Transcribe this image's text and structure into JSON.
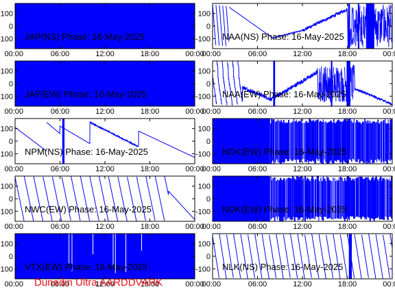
{
  "footer": "Dunedin Ultra AARDDVARK",
  "colors": {
    "trace": "#0000ff",
    "footer": "#e8101a",
    "frame": "#000000"
  },
  "chart_data": [
    {
      "type": "line",
      "title": "JAP(NS) Phase: 16-May-2025",
      "pattern": "solid",
      "xticks": [
        "00:00",
        "06:00",
        "12:00",
        "18:00",
        "00:00"
      ],
      "yticks": [
        100,
        0,
        -100
      ],
      "ylim": [
        -180,
        180
      ],
      "xlim": [
        0,
        24
      ]
    },
    {
      "type": "line",
      "title": "NAA(NS) Phase: 16-May-2025",
      "pattern": "naa_ns",
      "xticks": [
        "00:00",
        "06:00",
        "12:00",
        "18:00",
        "00:00"
      ],
      "yticks": [
        100,
        0,
        -100
      ],
      "ylim": [
        -180,
        180
      ],
      "xlim": [
        0,
        24
      ]
    },
    {
      "type": "line",
      "title": "JAP(EW) Phase: 16-May-2025",
      "pattern": "solid",
      "xticks": [
        "00:00",
        "06:00",
        "12:00",
        "18:00",
        "00:00"
      ],
      "yticks": [
        100,
        0,
        -100
      ],
      "ylim": [
        -180,
        180
      ],
      "xlim": [
        0,
        24
      ]
    },
    {
      "type": "line",
      "title": "NAA(EW) Phase: 16-May-2025",
      "pattern": "naa_ew",
      "xticks": [
        "00:00",
        "06:00",
        "12:00",
        "18:00",
        "00:00"
      ],
      "yticks": [
        100,
        0,
        -100
      ],
      "ylim": [
        -180,
        180
      ],
      "xlim": [
        0,
        24
      ]
    },
    {
      "type": "line",
      "title": "NPM(NS) Phase: 16-May-2025",
      "pattern": "npm_ns",
      "xticks": [
        "00:00",
        "06:00",
        "12:00",
        "18:00",
        "00:00"
      ],
      "yticks": [
        100,
        0,
        -100
      ],
      "ylim": [
        -180,
        180
      ],
      "xlim": [
        0,
        24
      ]
    },
    {
      "type": "line",
      "title": "NDK(EW) Phase: 16-May-2025",
      "pattern": "ndk",
      "xticks": [
        "00:00",
        "06:00",
        "12:00",
        "18:00",
        "00:00"
      ],
      "yticks": [
        100,
        0,
        -100
      ],
      "ylim": [
        -180,
        180
      ],
      "xlim": [
        0,
        24
      ]
    },
    {
      "type": "line",
      "title": "NWC(EW) Phase: 16-May-2025",
      "pattern": "nwc_ew",
      "xticks": [
        "00:00",
        "06:00",
        "12:00",
        "18:00",
        "00:00"
      ],
      "yticks": [
        100,
        0,
        -100
      ],
      "ylim": [
        -180,
        180
      ],
      "xlim": [
        0,
        24
      ]
    },
    {
      "type": "line",
      "title": "NDK(EW) Phase: 16-May-2025",
      "pattern": "ndk",
      "xticks": [
        "00:00",
        "06:00",
        "12:00",
        "18:00",
        "00:00"
      ],
      "yticks": [
        100,
        0,
        -100
      ],
      "ylim": [
        -180,
        180
      ],
      "xlim": [
        0,
        24
      ]
    },
    {
      "type": "line",
      "title": "VTX(EW) Phase: 16-May-2025",
      "pattern": "vtx",
      "xticks": [
        "00:00",
        "06:00",
        "12:00",
        "18:00",
        "00:00"
      ],
      "yticks": [
        100,
        0,
        -100
      ],
      "ylim": [
        -180,
        180
      ],
      "xlim": [
        0,
        24
      ]
    },
    {
      "type": "line",
      "title": "NLK(NS) Phase: 16-May-2025",
      "pattern": "nlk_ns",
      "xticks": [
        "00:00",
        "06:00",
        "12:00",
        "18:00",
        "00:00"
      ],
      "yticks": [
        100,
        0,
        -100
      ],
      "ylim": [
        -180,
        180
      ],
      "xlim": [
        0,
        24
      ]
    }
  ]
}
